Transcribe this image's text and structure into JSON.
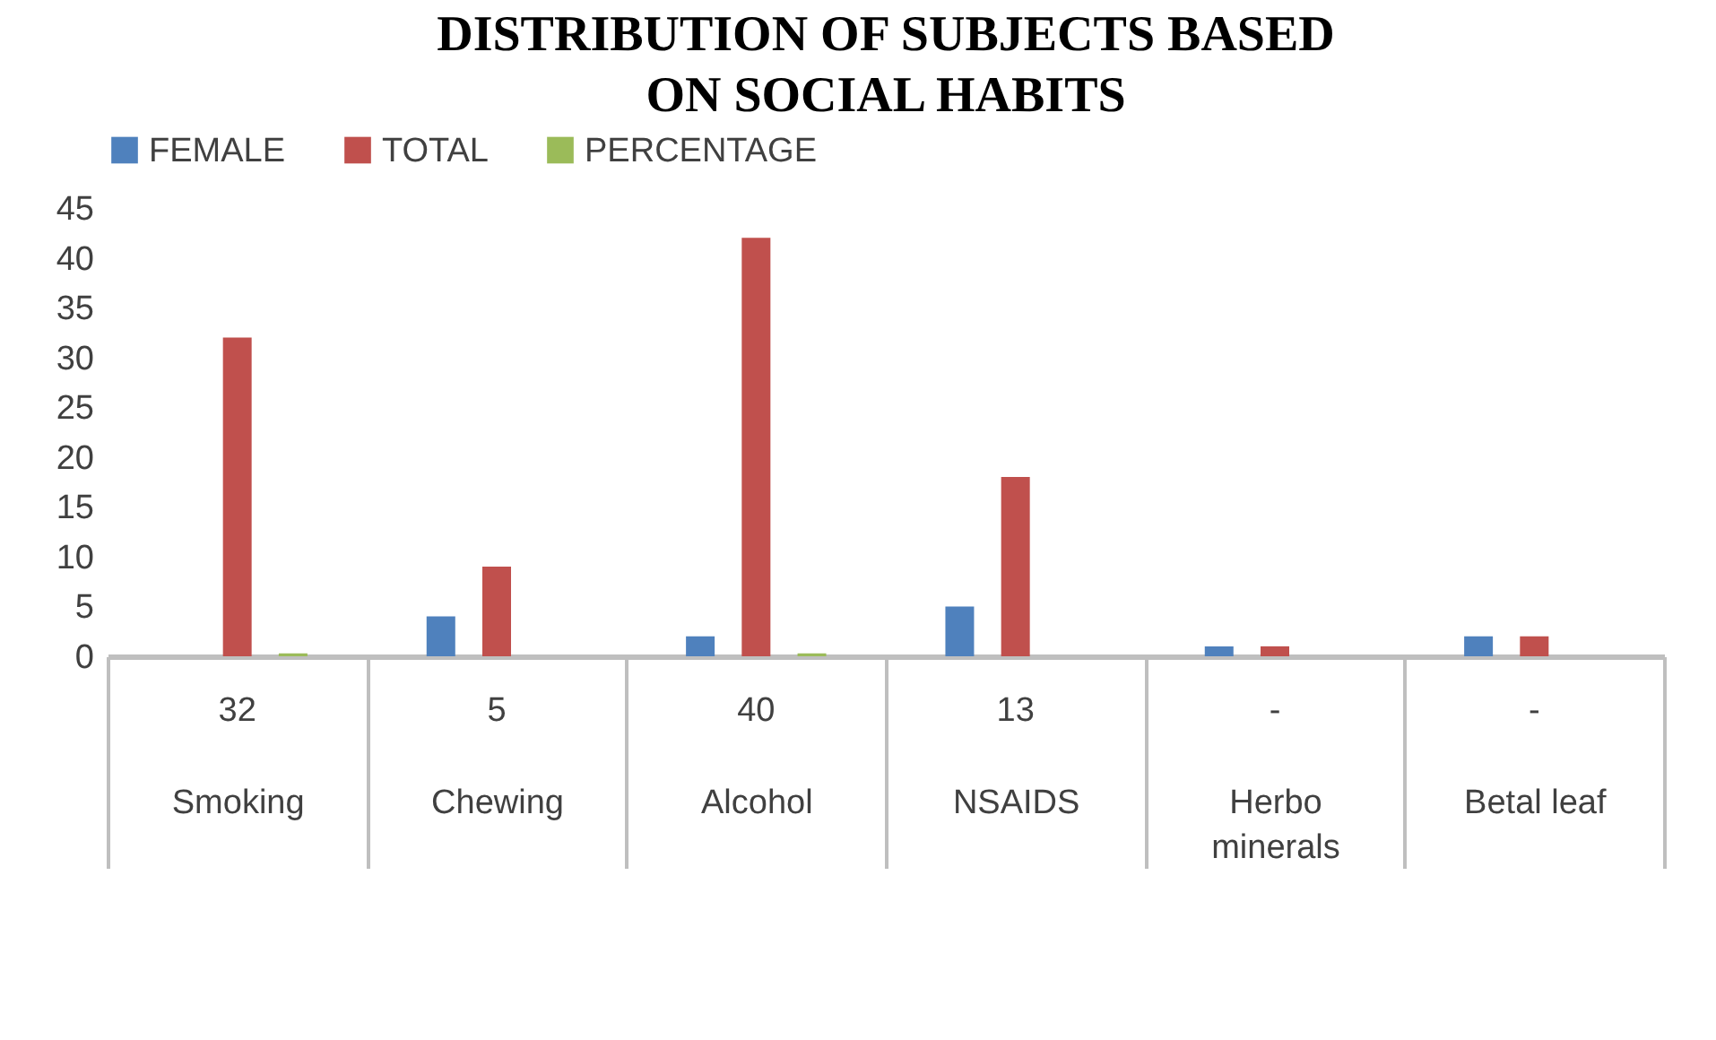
{
  "chart_data": {
    "type": "bar",
    "title": "DISTRIBUTION OF SUBJECTS BASED ON SOCIAL HABITS",
    "categories": [
      "Smoking",
      "Chewing",
      "Alcohol",
      "NSAIDS",
      "Herbo minerals",
      "Betal leaf"
    ],
    "series": [
      {
        "name": "FEMALE",
        "color": "#4f81bd",
        "values": [
          0,
          4,
          2,
          5,
          1,
          2
        ]
      },
      {
        "name": "TOTAL",
        "color": "#c0504d",
        "values": [
          32,
          9,
          42,
          18,
          1,
          2
        ]
      },
      {
        "name": "PERCENTAGE",
        "color": "#9bbb59",
        "values": [
          0.3,
          0,
          0.3,
          0,
          0,
          0
        ]
      }
    ],
    "annotations": [
      "32",
      "5",
      "40",
      "13",
      "-",
      "-"
    ],
    "ylim": [
      0,
      45
    ],
    "yticks": [
      0,
      5,
      10,
      15,
      20,
      25,
      30,
      35,
      40,
      45
    ],
    "grid": false,
    "legend": "top"
  }
}
